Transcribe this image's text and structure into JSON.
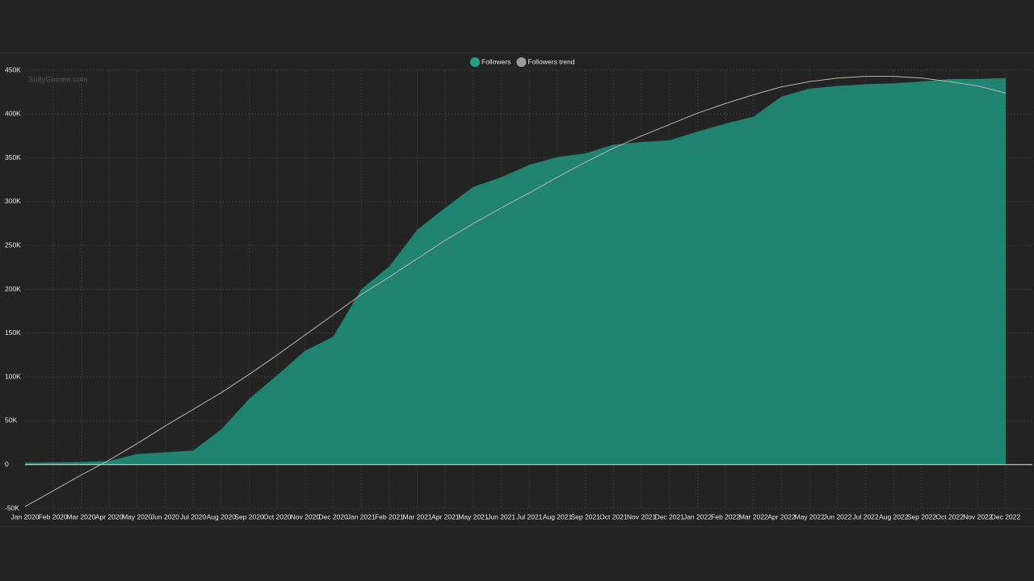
{
  "chart_data": {
    "type": "area",
    "watermark": "SullyGnome.com",
    "legend": "top",
    "grid": true,
    "categories": [
      "Jan 2020",
      "Feb 2020",
      "Mar 2020",
      "Apr 2020",
      "May 2020",
      "Jun 2020",
      "Jul 2020",
      "Aug 2020",
      "Sep 2020",
      "Oct 2020",
      "Nov 2020",
      "Dec 2020",
      "Jan 2021",
      "Feb 2021",
      "Mar 2021",
      "Apr 2021",
      "May 2021",
      "Jun 2021",
      "Jul 2021",
      "Aug 2021",
      "Sep 2021",
      "Oct 2021",
      "Nov 2021",
      "Dec 2021",
      "Jan 2022",
      "Feb 2022",
      "Mar 2022",
      "Apr 2022",
      "May 2022",
      "Jun 2022",
      "Jul 2022",
      "Aug 2022",
      "Sep 2022",
      "Oct 2022",
      "Nov 2022",
      "Dec 2022"
    ],
    "series": [
      {
        "name": "Followers",
        "type": "area",
        "color": "#1f8370",
        "legend_color": "#25a085",
        "values": [
          2000,
          2500,
          3000,
          4000,
          12000,
          14000,
          16000,
          40000,
          75000,
          102000,
          130000,
          146000,
          200000,
          226000,
          268000,
          293000,
          317000,
          328000,
          342000,
          351000,
          355000,
          365000,
          368000,
          370000,
          380000,
          389000,
          397000,
          420000,
          429000,
          432000,
          434000,
          435000,
          437000,
          440000,
          440000,
          441000
        ]
      },
      {
        "name": "Followers trend",
        "type": "line",
        "color": "#b5b5b5",
        "legend_color": "#9a9a9a",
        "values": [
          -48000,
          -30000,
          -12000,
          5000,
          24000,
          44000,
          63000,
          82000,
          103000,
          125000,
          148000,
          171000,
          194000,
          214000,
          235000,
          256000,
          275000,
          293000,
          310000,
          328000,
          345000,
          361000,
          375000,
          388000,
          401000,
          412000,
          422000,
          431000,
          437000,
          441000,
          443000,
          443000,
          441000,
          437000,
          432000,
          424000
        ]
      }
    ],
    "ylim": [
      -50000,
      450000
    ],
    "yticks": [
      {
        "value": -50000,
        "label": "-50K"
      },
      0,
      {
        "value": 50000,
        "label": "50K"
      },
      {
        "value": 100000,
        "label": "100K"
      },
      {
        "value": 150000,
        "label": "150K"
      },
      {
        "value": 200000,
        "label": "200K"
      },
      {
        "value": 250000,
        "label": "250K"
      },
      {
        "value": 300000,
        "label": "300K"
      },
      {
        "value": 350000,
        "label": "350K"
      },
      {
        "value": 400000,
        "label": "400K"
      },
      {
        "value": 450000,
        "label": "450K"
      }
    ]
  }
}
